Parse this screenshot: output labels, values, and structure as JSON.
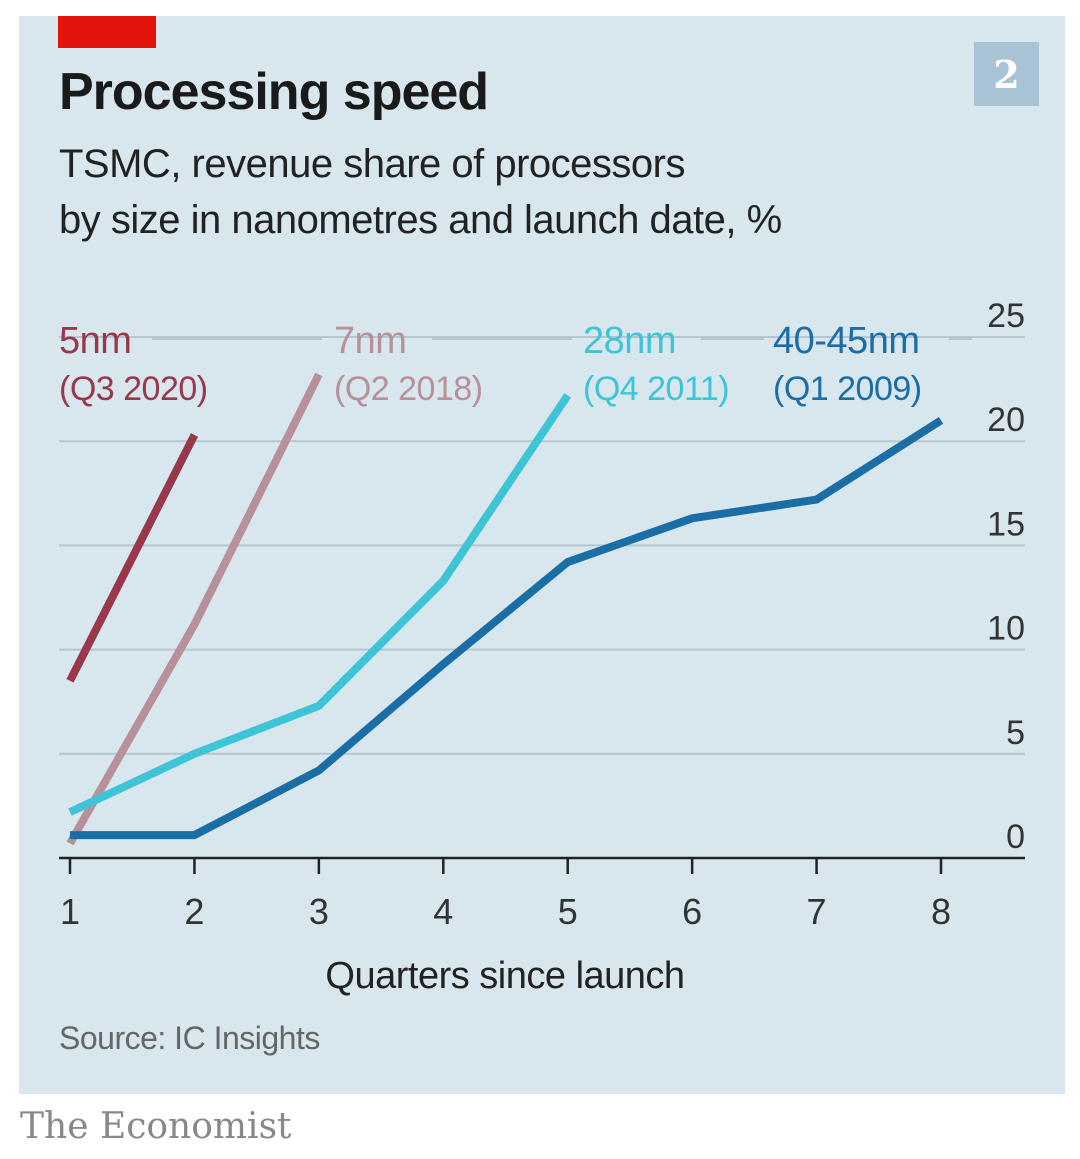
{
  "badge": "2",
  "title": "Processing speed",
  "subtitle_lines": [
    "TSMC, revenue share of processors",
    "by size in nanometres and launch date, %"
  ],
  "source": "Source: IC Insights",
  "footer": "The Economist",
  "colors": {
    "panel": "#d8e6ee",
    "accent_red": "#e3120b",
    "badge": "#a8c3d3",
    "grid": "#b5c6d0",
    "axis": "#222222"
  },
  "chart_data": {
    "type": "line",
    "xlabel": "Quarters since launch",
    "ylabel": "",
    "xlim": [
      1,
      8
    ],
    "ylim": [
      0,
      25
    ],
    "y_ticks": [
      0,
      5,
      10,
      15,
      20,
      25
    ],
    "x_ticks": [
      1,
      2,
      3,
      4,
      5,
      6,
      7,
      8
    ],
    "y_axis_side": "right",
    "grid": true,
    "series": [
      {
        "name": "5nm",
        "sublabel": "(Q3 2020)",
        "color": "#99384a",
        "x": [
          1,
          2
        ],
        "y": [
          8.5,
          20.3
        ]
      },
      {
        "name": "7nm",
        "sublabel": "(Q2 2018)",
        "color": "#b89099",
        "x": [
          1,
          2,
          3
        ],
        "y": [
          0.7,
          11.2,
          23.2
        ]
      },
      {
        "name": "28nm",
        "sublabel": "(Q4 2011)",
        "color": "#3ec4d7",
        "x": [
          1,
          2,
          3,
          4,
          5
        ],
        "y": [
          2.2,
          5.0,
          7.3,
          13.3,
          22.2
        ]
      },
      {
        "name": "40-45nm",
        "sublabel": "(Q1 2009)",
        "color": "#1b6ea5",
        "x": [
          1,
          2,
          3,
          4,
          5,
          6,
          7,
          8
        ],
        "y": [
          1.1,
          1.1,
          4.2,
          9.3,
          14.2,
          16.3,
          17.2,
          21.0
        ]
      }
    ]
  }
}
